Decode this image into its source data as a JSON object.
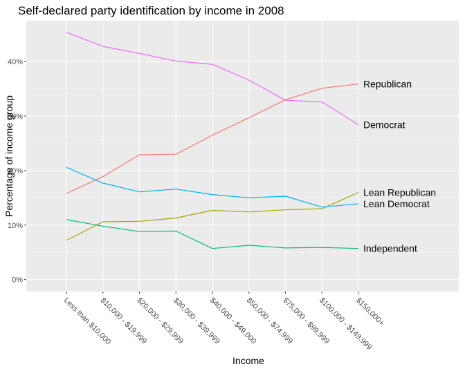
{
  "chart_data": {
    "type": "line",
    "title": "Self-declared party identification by income in 2008",
    "xlabel": "Income",
    "ylabel": "Percentage of income group",
    "categories": [
      "Less than $10,000",
      "$10,000 - $19,999",
      "$20,000 - $29,999",
      "$30,000 - $39,999",
      "$40,000 - $49,000",
      "$50,000 - $74,999",
      "$75,000 - $99,999",
      "$100,000 - $149,999",
      "$150,000+"
    ],
    "y_ticks": [
      0,
      10,
      20,
      30,
      40
    ],
    "y_tick_labels": [
      "0%",
      "10%",
      "20%",
      "30%",
      "40%"
    ],
    "ylim": [
      -2.2,
      47.5
    ],
    "grid": true,
    "legend": "none (direct labels at line ends)",
    "series": [
      {
        "name": "Republican",
        "color": "#F8766D",
        "values": [
          15.8,
          18.9,
          22.9,
          23.0,
          26.5,
          29.7,
          33.0,
          35.1,
          35.9
        ]
      },
      {
        "name": "Democrat",
        "color": "#E76BF3",
        "values": [
          45.4,
          42.8,
          41.5,
          40.1,
          39.5,
          36.6,
          32.9,
          32.6,
          28.4
        ]
      },
      {
        "name": "Lean Republican",
        "color": "#A3A500",
        "values": [
          7.2,
          10.6,
          10.7,
          11.3,
          12.7,
          12.4,
          12.8,
          13.0,
          16.0
        ]
      },
      {
        "name": "Lean Democrat",
        "color": "#00B0F6",
        "values": [
          20.6,
          17.7,
          16.1,
          16.6,
          15.6,
          15.0,
          15.3,
          13.3,
          13.9
        ]
      },
      {
        "name": "Independent",
        "color": "#00BF7D",
        "values": [
          11.0,
          9.8,
          8.8,
          8.9,
          5.7,
          6.3,
          5.8,
          5.9,
          5.7
        ]
      }
    ]
  }
}
